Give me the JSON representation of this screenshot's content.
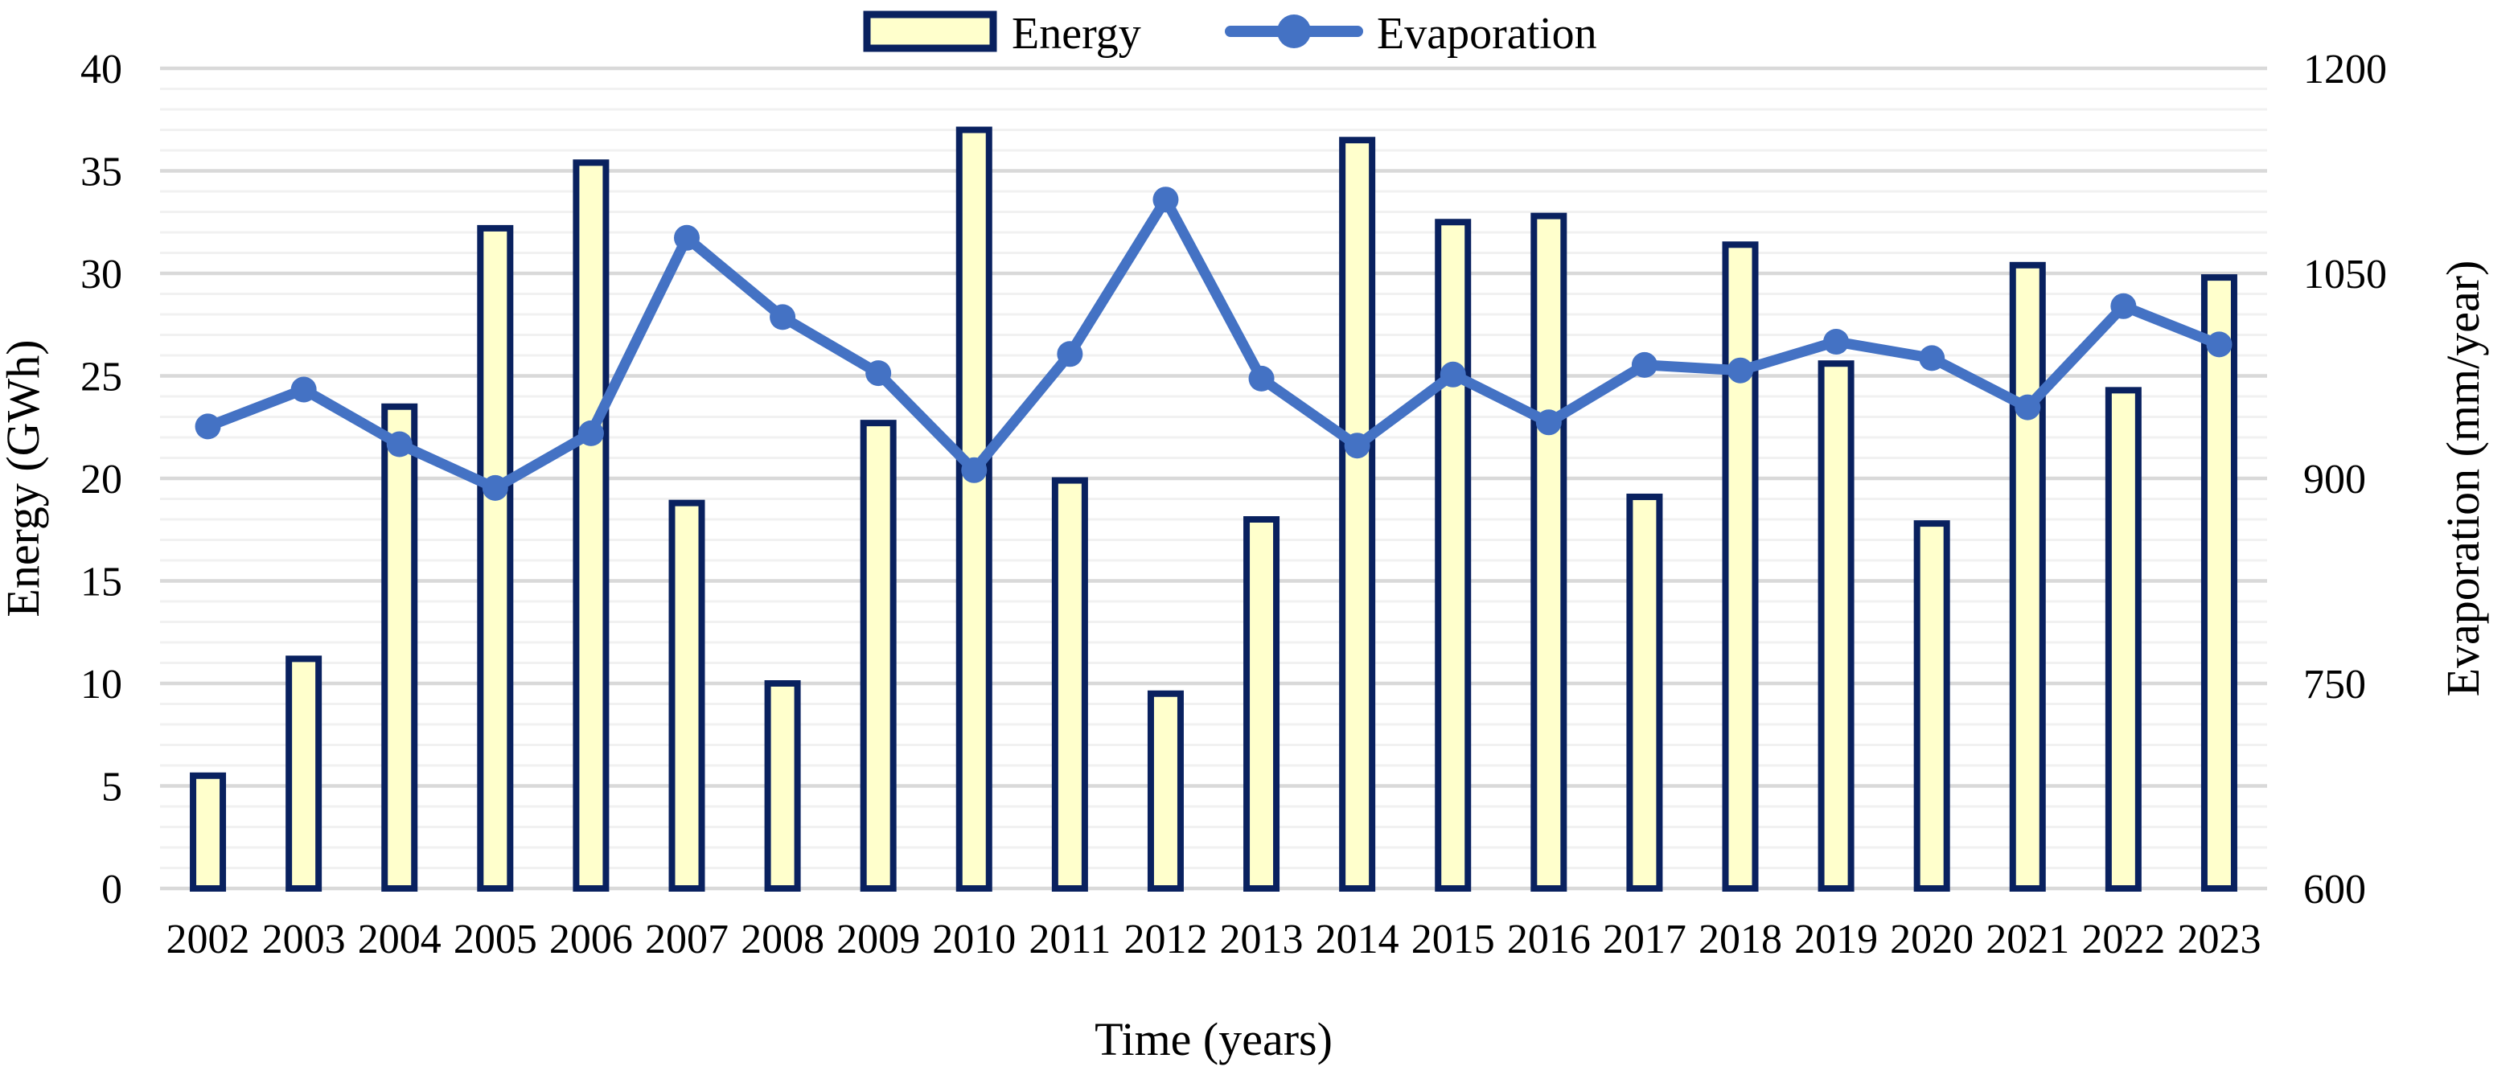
{
  "colors": {
    "bar_fill": "#FFFFCC",
    "bar_border": "#09215F",
    "line": "#4472C4",
    "grid_minor": "#F1F1F1",
    "grid_major": "#D9D9D9",
    "text": "#000000",
    "background": "#FFFFFF"
  },
  "chart_data": {
    "type": "combo",
    "subtype": "bar+line",
    "categories": [
      "2002",
      "2003",
      "2004",
      "2005",
      "2006",
      "2007",
      "2008",
      "2009",
      "2010",
      "2011",
      "2012",
      "2013",
      "2014",
      "2015",
      "2016",
      "2017",
      "2018",
      "2019",
      "2020",
      "2021",
      "2022",
      "2023"
    ],
    "series": [
      {
        "name": "Energy",
        "type": "bar",
        "axis": "left",
        "values": [
          5.5,
          11.2,
          23.5,
          32.2,
          35.4,
          18.8,
          10.0,
          22.7,
          37.0,
          19.9,
          9.5,
          18.0,
          36.5,
          32.5,
          32.8,
          19.1,
          31.4,
          25.6,
          17.8,
          30.4,
          24.3,
          29.8
        ]
      },
      {
        "name": "Evaporation",
        "type": "line",
        "axis": "right",
        "values": [
          938,
          965,
          925,
          893,
          933,
          1076,
          1018,
          977,
          906,
          991,
          1104,
          973,
          924,
          976,
          941,
          983,
          979,
          1000,
          988,
          952,
          1026,
          998
        ]
      }
    ],
    "left_axis": {
      "label": "Energy (GWh)",
      "min": 0,
      "max": 40,
      "major_step": 5,
      "minor_step": 1,
      "ticks": [
        0,
        5,
        10,
        15,
        20,
        25,
        30,
        35,
        40
      ]
    },
    "right_axis": {
      "label": "Evaporation (mm/year)",
      "min": 600,
      "max": 1200,
      "major_step": 150,
      "ticks": [
        600,
        750,
        900,
        1050,
        1200
      ]
    },
    "x_axis": {
      "label": "Time (years)"
    },
    "legend": {
      "position": "top-center",
      "entries": [
        "Energy",
        "Evaporation"
      ]
    },
    "grid": {
      "major": true,
      "minor": true
    }
  }
}
